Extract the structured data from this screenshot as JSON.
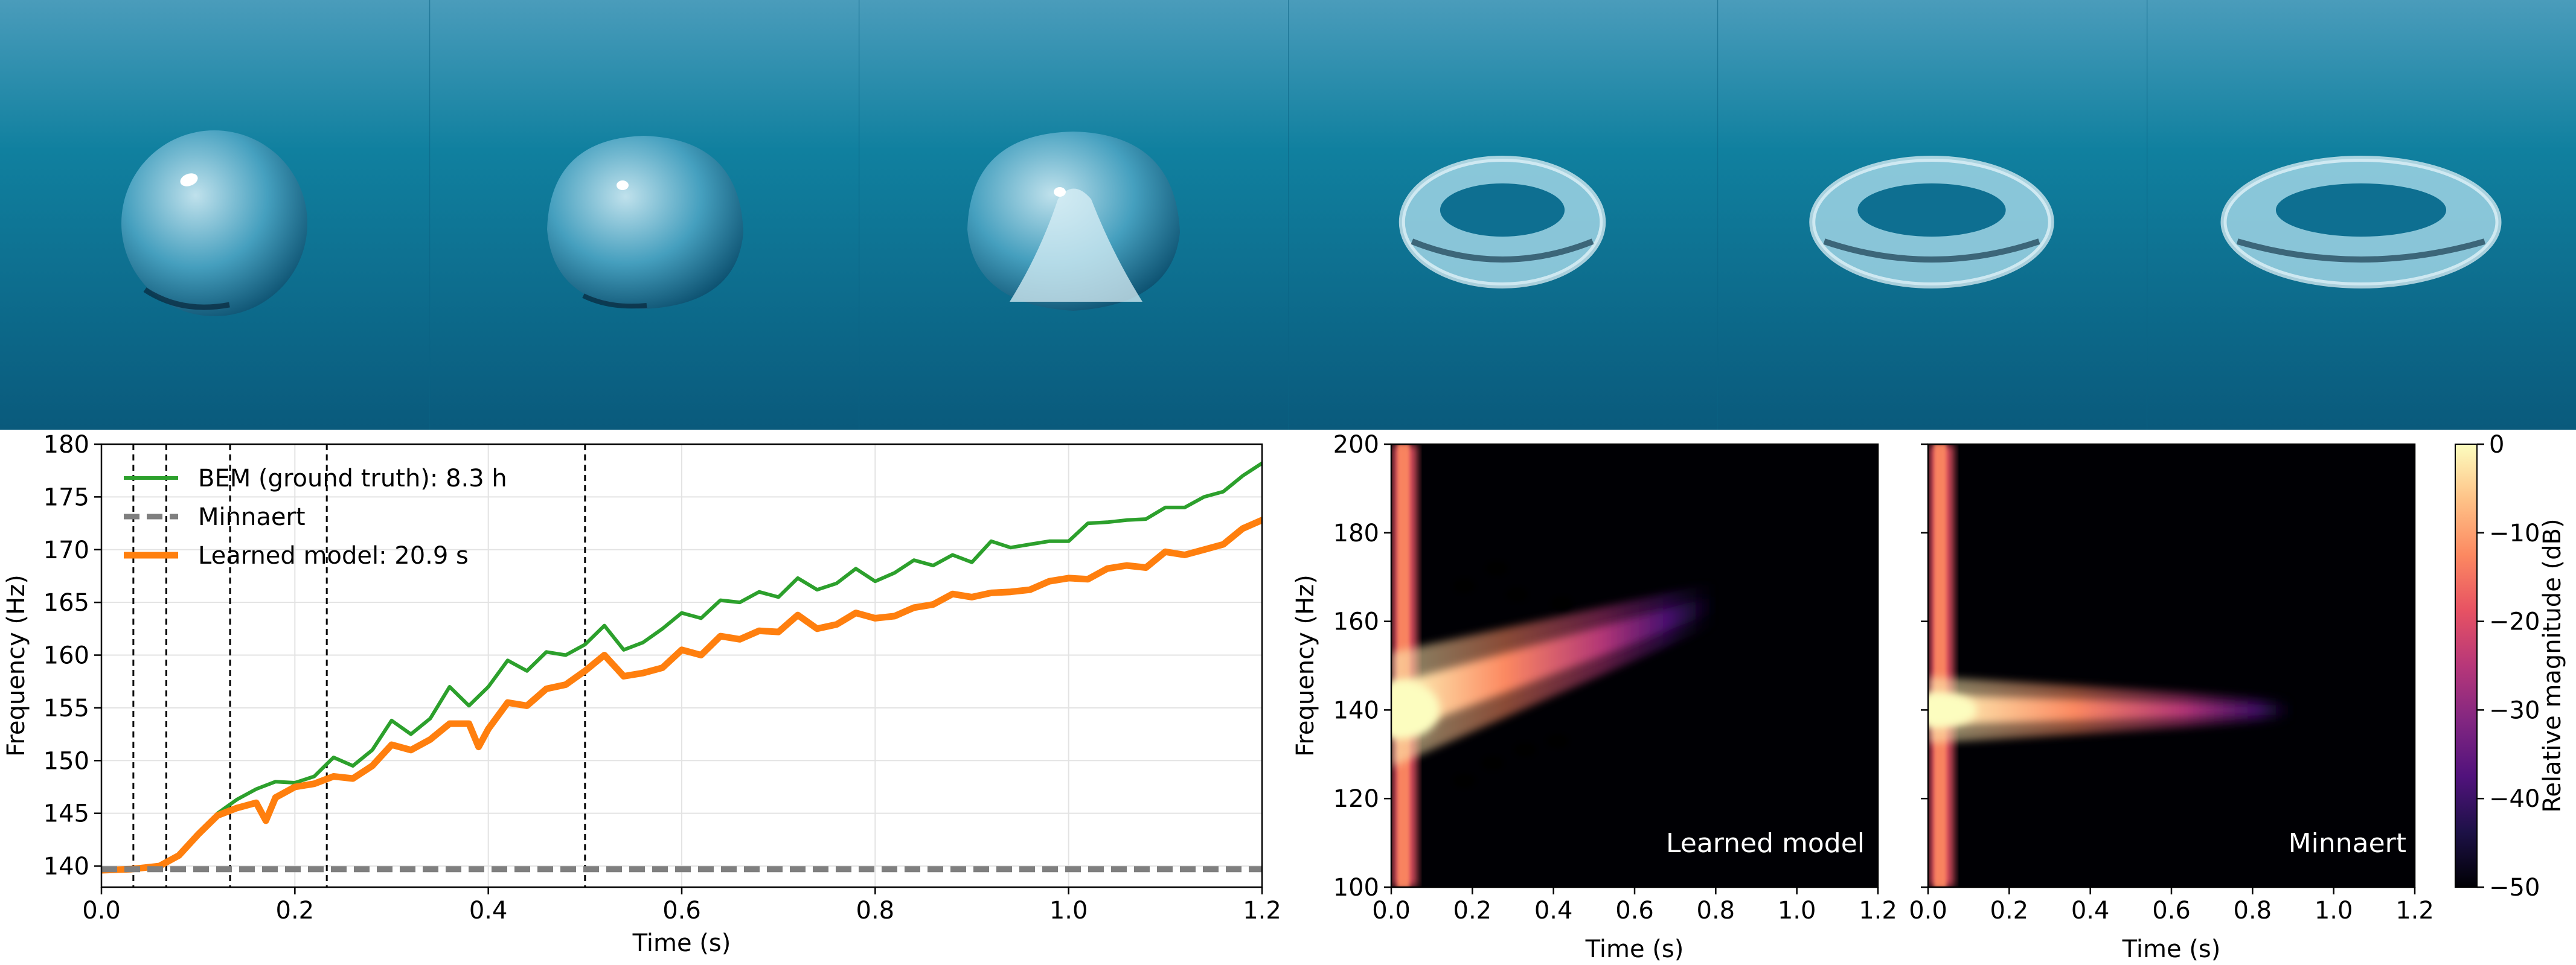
{
  "frames": [
    {
      "shape": "sphere-bubble"
    },
    {
      "shape": "flattening-bubble"
    },
    {
      "shape": "jet-forming-bubble"
    },
    {
      "shape": "toroidal-bubble-forming"
    },
    {
      "shape": "toroidal-bubble"
    },
    {
      "shape": "toroidal-bubble-expanded"
    }
  ],
  "colors": {
    "water_top": "#4a9cbb",
    "water_bottom": "#0a5a7c",
    "bem": "#2ca02c",
    "minnaert": "#7f7f7f",
    "learned": "#ff7f0e"
  },
  "chart_data": [
    {
      "type": "line",
      "xlabel": "Time (s)",
      "ylabel": "Frequency (Hz)",
      "xlim": [
        0,
        1.2
      ],
      "ylim": [
        138,
        180
      ],
      "xticks": [
        "0.0",
        "0.2",
        "0.4",
        "0.6",
        "0.8",
        "1.0",
        "1.2"
      ],
      "yticks": [
        "140",
        "145",
        "150",
        "155",
        "160",
        "165",
        "170",
        "175",
        "180"
      ],
      "grid": true,
      "legend_position": "upper-left",
      "vlines": [
        0.033,
        0.067,
        0.133,
        0.233,
        0.5
      ],
      "series": [
        {
          "name": "BEM (ground truth): 8.3 h",
          "x": [
            0,
            0.03,
            0.06,
            0.08,
            0.1,
            0.12,
            0.14,
            0.16,
            0.18,
            0.2,
            0.22,
            0.24,
            0.26,
            0.28,
            0.3,
            0.32,
            0.34,
            0.36,
            0.38,
            0.4,
            0.42,
            0.44,
            0.46,
            0.48,
            0.5,
            0.52,
            0.54,
            0.56,
            0.58,
            0.6,
            0.62,
            0.64,
            0.66,
            0.68,
            0.7,
            0.72,
            0.74,
            0.76,
            0.78,
            0.8,
            0.82,
            0.84,
            0.86,
            0.88,
            0.9,
            0.92,
            0.94,
            0.96,
            0.98,
            1.0,
            1.02,
            1.04,
            1.06,
            1.08,
            1.1,
            1.12,
            1.14,
            1.16,
            1.18,
            1.2
          ],
          "y": [
            139.6,
            139.7,
            140.0,
            141.0,
            143.0,
            145.0,
            146.3,
            147.3,
            148.0,
            147.9,
            148.5,
            150.3,
            149.5,
            151.0,
            153.8,
            152.5,
            154.0,
            157.0,
            155.2,
            157.0,
            159.5,
            158.5,
            160.3,
            160.0,
            161.0,
            162.8,
            160.5,
            161.2,
            162.5,
            164.0,
            163.5,
            165.2,
            165.0,
            166.0,
            165.5,
            167.3,
            166.2,
            166.8,
            168.2,
            167.0,
            167.8,
            169.0,
            168.5,
            169.5,
            168.8,
            170.8,
            170.2,
            170.5,
            170.8,
            170.8,
            172.5,
            172.6,
            172.8,
            172.9,
            174.0,
            174.0,
            175.0,
            175.5,
            177.0,
            178.2
          ]
        },
        {
          "name": "Minnaert",
          "x": [
            0,
            1.2
          ],
          "y": [
            139.7,
            139.7
          ]
        },
        {
          "name": "Learned model: 20.9 s",
          "x": [
            0,
            0.03,
            0.06,
            0.08,
            0.1,
            0.12,
            0.14,
            0.16,
            0.17,
            0.18,
            0.2,
            0.22,
            0.24,
            0.26,
            0.28,
            0.3,
            0.32,
            0.34,
            0.36,
            0.38,
            0.39,
            0.4,
            0.42,
            0.44,
            0.46,
            0.48,
            0.5,
            0.52,
            0.54,
            0.56,
            0.58,
            0.6,
            0.62,
            0.64,
            0.66,
            0.68,
            0.7,
            0.72,
            0.74,
            0.76,
            0.78,
            0.8,
            0.82,
            0.84,
            0.86,
            0.88,
            0.9,
            0.92,
            0.94,
            0.96,
            0.98,
            1.0,
            1.02,
            1.04,
            1.06,
            1.08,
            1.1,
            1.12,
            1.14,
            1.16,
            1.18,
            1.2
          ],
          "y": [
            139.6,
            139.7,
            140.0,
            141.0,
            143.0,
            144.8,
            145.5,
            146.0,
            144.3,
            146.5,
            147.5,
            147.8,
            148.5,
            148.3,
            149.5,
            151.5,
            151.0,
            152.0,
            153.5,
            153.5,
            151.3,
            153.0,
            155.5,
            155.2,
            156.8,
            157.2,
            158.5,
            160.0,
            158.0,
            158.3,
            158.8,
            160.5,
            160.0,
            161.8,
            161.5,
            162.3,
            162.2,
            163.8,
            162.5,
            162.9,
            164.0,
            163.5,
            163.7,
            164.5,
            164.8,
            165.8,
            165.5,
            165.9,
            166.0,
            166.2,
            167.0,
            167.3,
            167.2,
            168.2,
            168.5,
            168.3,
            169.8,
            169.5,
            170.0,
            170.5,
            172.0,
            172.8
          ]
        }
      ]
    },
    {
      "type": "heatmap",
      "annotation": "Learned model",
      "xlabel": "Time (s)",
      "ylabel": "Frequency (Hz)",
      "xlim": [
        0,
        1.2
      ],
      "ylim": [
        100,
        200
      ],
      "xticks": [
        "0.0",
        "0.2",
        "0.4",
        "0.6",
        "0.8",
        "1.0",
        "1.2"
      ],
      "yticks": [
        "100",
        "120",
        "140",
        "160",
        "180",
        "200"
      ],
      "ridge": {
        "freq_start_hz": 140,
        "freq_end_hz": 164,
        "end_time_s": 0.8
      }
    },
    {
      "type": "heatmap",
      "annotation": "Minnaert",
      "xlabel": "Time (s)",
      "xlim": [
        0,
        1.2
      ],
      "ylim": [
        100,
        200
      ],
      "xticks": [
        "0.0",
        "0.2",
        "0.4",
        "0.6",
        "0.8",
        "1.0",
        "1.2"
      ],
      "ridge": {
        "freq_start_hz": 140,
        "freq_end_hz": 140,
        "end_time_s": 0.9
      }
    }
  ],
  "colorbar": {
    "label": "Relative magnitude (dB)",
    "range": [
      -50,
      0
    ],
    "ticks": [
      "0",
      "−10",
      "−20",
      "−30",
      "−40",
      "−50"
    ],
    "colormap": [
      "#000004",
      "#1d1147",
      "#51127c",
      "#822681",
      "#b73779",
      "#e75263",
      "#fc8961",
      "#fec287",
      "#fcfdbf"
    ]
  }
}
